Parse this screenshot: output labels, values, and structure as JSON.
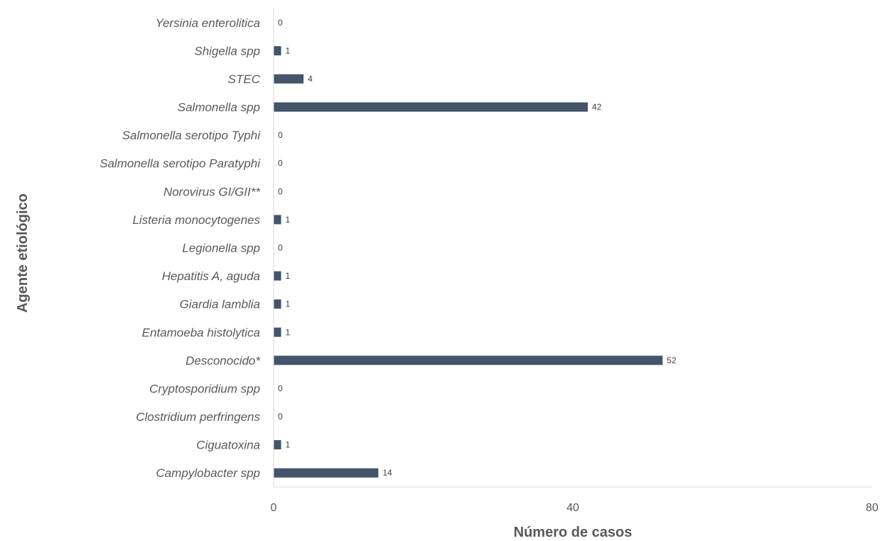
{
  "chart_data": {
    "type": "bar",
    "orientation": "horizontal",
    "categories": [
      "Yersinia enterolitica",
      "Shigella spp",
      "STEC",
      "Salmonella spp",
      "Salmonella serotipo Typhi",
      "Salmonella serotipo Paratyphi",
      "Norovirus GI/GII**",
      "Listeria monocytogenes",
      "Legionella spp",
      "Hepatitis A, aguda",
      "Giardia lamblia",
      "Entamoeba histolytica",
      "Desconocido*",
      "Cryptosporidium spp",
      "Clostridium perfringens",
      "Ciguatoxina",
      "Campylobacter spp"
    ],
    "values": [
      0,
      1,
      4,
      42,
      0,
      0,
      0,
      1,
      0,
      1,
      1,
      1,
      52,
      0,
      0,
      1,
      14
    ],
    "xlabel": "Número de casos",
    "ylabel": "Agente etiológico",
    "xlim": [
      0,
      80
    ],
    "xticks": [
      0,
      40,
      80
    ],
    "grid": false,
    "bar_color": "#44546a"
  }
}
